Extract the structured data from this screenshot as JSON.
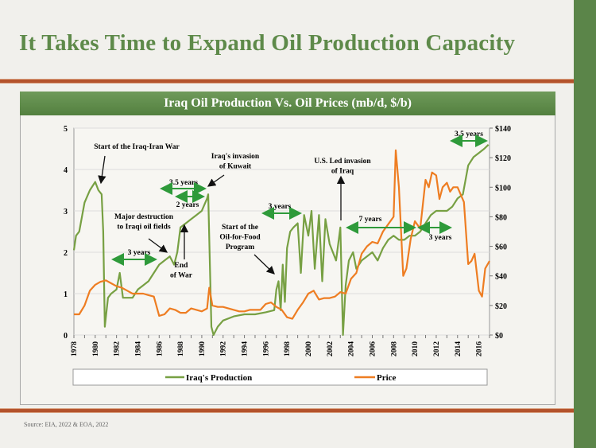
{
  "slide": {
    "title": "It Takes Time to Expand Oil Production Capacity",
    "chart_header": "Iraq Oil Production Vs. Oil Prices (mb/d, $/b)",
    "source": "Source: EIA, 2022 & EOA, 2022",
    "colors": {
      "accent_green": "#5b8549",
      "rule": "#b4532c",
      "production": "#77a043",
      "price": "#ee7d22",
      "annotation_arrow": "#2e9a3a"
    }
  },
  "chart_data": {
    "type": "line",
    "title": "Iraq Oil Production Vs. Oil Prices (mb/d, $/b)",
    "xlim": [
      1978,
      2017
    ],
    "x_tick_labels": [
      "1978",
      "1980",
      "1982",
      "1984",
      "1986",
      "1988",
      "1990",
      "1992",
      "1994",
      "1996",
      "1998",
      "2000",
      "2002",
      "2004",
      "2006",
      "2008",
      "2010",
      "2012",
      "2014",
      "2016"
    ],
    "y_left": {
      "ylim": [
        0,
        5
      ],
      "tick_labels": [
        "0",
        "1",
        "2",
        "3",
        "4",
        "5"
      ]
    },
    "y_right": {
      "ylim": [
        0,
        140
      ],
      "tick_labels": [
        "$0",
        "$20",
        "$40",
        "$60",
        "$80",
        "$100",
        "$120",
        "$140"
      ]
    },
    "grid": true,
    "legend_placement": "bottom",
    "series": [
      {
        "name": "Iraq's Production",
        "axis": "left",
        "x": [
          1978,
          1978.2,
          1978.5,
          1979,
          1979.5,
          1980,
          1980.3,
          1980.6,
          1980.75,
          1980.9,
          1981.2,
          1981.5,
          1982,
          1982.3,
          1982.6,
          1983,
          1983.5,
          1984,
          1984.5,
          1985,
          1985.5,
          1986,
          1986.5,
          1987,
          1987.4,
          1987.7,
          1988,
          1988.5,
          1989,
          1989.5,
          1990,
          1990.5,
          1990.6,
          1990.9,
          1991.1,
          1991.5,
          1992,
          1993,
          1994,
          1995,
          1996,
          1996.8,
          1997,
          1997.2,
          1997.4,
          1997.6,
          1997.8,
          1998,
          1998.3,
          1998.6,
          1999,
          1999.3,
          1999.6,
          2000,
          2000.3,
          2000.6,
          2001,
          2001.3,
          2001.6,
          2002,
          2002.3,
          2002.6,
          2003,
          2003.25,
          2003.5,
          2003.8,
          2004.2,
          2004.5,
          2005,
          2005.5,
          2006,
          2006.5,
          2007,
          2007.5,
          2008,
          2008.5,
          2009,
          2009.5,
          2010,
          2010.5,
          2011,
          2011.5,
          2012,
          2012.5,
          2013,
          2013.5,
          2014,
          2014.5,
          2015,
          2015.5,
          2016,
          2016.5,
          2016.9
        ],
        "values": [
          2.05,
          2.4,
          2.5,
          3.2,
          3.5,
          3.7,
          3.5,
          3.4,
          2.5,
          0.2,
          0.9,
          1.0,
          1.1,
          1.5,
          0.9,
          0.9,
          0.9,
          1.1,
          1.2,
          1.3,
          1.5,
          1.7,
          1.8,
          1.9,
          1.7,
          2.0,
          2.6,
          2.7,
          2.8,
          2.9,
          3.0,
          3.3,
          3.4,
          0.2,
          0.0,
          0.2,
          0.35,
          0.45,
          0.5,
          0.5,
          0.55,
          0.6,
          1.1,
          1.3,
          0.6,
          1.7,
          0.8,
          2.1,
          2.5,
          2.6,
          2.7,
          1.5,
          2.9,
          2.4,
          3.0,
          1.6,
          2.9,
          1.3,
          2.8,
          2.2,
          2.0,
          1.8,
          2.6,
          0.0,
          1.2,
          1.8,
          2.0,
          1.6,
          1.8,
          1.9,
          2.0,
          1.8,
          2.1,
          2.3,
          2.4,
          2.3,
          2.3,
          2.4,
          2.4,
          2.5,
          2.7,
          2.9,
          3.0,
          3.0,
          3.0,
          3.1,
          3.3,
          3.4,
          4.1,
          4.3,
          4.4,
          4.5,
          4.6
        ]
      },
      {
        "name": "Price",
        "axis": "right",
        "x": [
          1978,
          1978.5,
          1979,
          1979.5,
          1980,
          1980.5,
          1981,
          1981.5,
          1982,
          1982.5,
          1983,
          1983.5,
          1984,
          1984.5,
          1985,
          1985.5,
          1986,
          1986.5,
          1987,
          1987.5,
          1988,
          1988.5,
          1989,
          1989.5,
          1990,
          1990.5,
          1990.7,
          1991,
          1991.5,
          1992,
          1992.5,
          1993,
          1993.5,
          1994,
          1994.5,
          1995,
          1995.5,
          1996,
          1996.5,
          1997,
          1997.5,
          1998,
          1998.5,
          1999,
          1999.5,
          2000,
          2000.5,
          2001,
          2001.5,
          2002,
          2002.5,
          2003,
          2003.5,
          2004,
          2004.5,
          2005,
          2005.5,
          2006,
          2006.5,
          2007,
          2007.5,
          2008,
          2008.2,
          2008.5,
          2008.9,
          2009.2,
          2009.6,
          2010,
          2010.5,
          2011,
          2011.3,
          2011.6,
          2012,
          2012.3,
          2012.6,
          2013,
          2013.3,
          2013.6,
          2014,
          2014.3,
          2014.6,
          2015,
          2015.3,
          2015.6,
          2016,
          2016.3,
          2016.6,
          2017
        ],
        "values": [
          14,
          14,
          20,
          30,
          34,
          36,
          37,
          35,
          33,
          32,
          30,
          28,
          28,
          28,
          27,
          26,
          13,
          14,
          18,
          17,
          15,
          15,
          18,
          17,
          16,
          18,
          32,
          20,
          19,
          19,
          18,
          17,
          16,
          16,
          17,
          17,
          17,
          21,
          22,
          19,
          17,
          12,
          11,
          17,
          22,
          28,
          30,
          24,
          25,
          25,
          26,
          29,
          28,
          38,
          42,
          55,
          60,
          63,
          62,
          70,
          75,
          80,
          125,
          100,
          40,
          45,
          65,
          77,
          72,
          105,
          100,
          110,
          108,
          92,
          100,
          103,
          97,
          100,
          100,
          95,
          90,
          48,
          50,
          55,
          30,
          26,
          45,
          50
        ]
      }
    ],
    "annotations": [
      {
        "text": [
          "Start of the Iraq-Iran War"
        ]
      },
      {
        "text": [
          "Iraq's invasion",
          "of Kuwait"
        ]
      },
      {
        "text": [
          "3.5 years"
        ]
      },
      {
        "text": [
          "2 years"
        ]
      },
      {
        "text": [
          "Major destruction",
          "to Iraqi oil fields"
        ]
      },
      {
        "text": [
          "3 years"
        ]
      },
      {
        "text": [
          "End",
          "of  War"
        ]
      },
      {
        "text": [
          "Start of the",
          "Oil-for-Food",
          "Program"
        ]
      },
      {
        "text": [
          "3 years"
        ]
      },
      {
        "text": [
          "U.S. Led invasion",
          "of Iraq"
        ]
      },
      {
        "text": [
          "7 years"
        ]
      },
      {
        "text": [
          "3 years"
        ]
      },
      {
        "text": [
          "3.5 years"
        ]
      }
    ]
  }
}
